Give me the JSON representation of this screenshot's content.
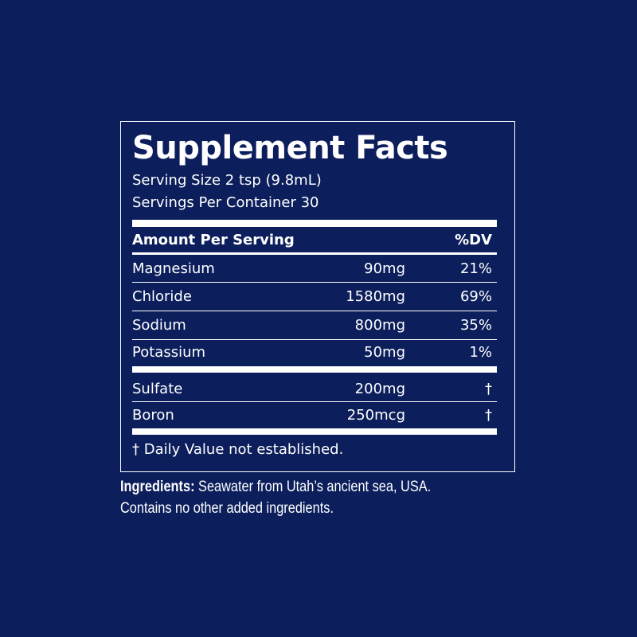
{
  "colors": {
    "background": "#0c1f5c",
    "text": "#ffffff"
  },
  "label": {
    "title": "Supplement Facts",
    "serving_size": "Serving Size 2 tsp (9.8mL)",
    "servings_per_container": "Servings Per Container 30",
    "header": {
      "amount": "Amount Per Serving",
      "dv": "%DV"
    },
    "rows": [
      {
        "name": "Magnesium",
        "amount": "90mg",
        "dv": "21%"
      },
      {
        "name": "Chloride",
        "amount": "1580mg",
        "dv": "69%"
      },
      {
        "name": "Sodium",
        "amount": "800mg",
        "dv": "35%"
      },
      {
        "name": "Potassium",
        "amount": "50mg",
        "dv": "1%"
      },
      {
        "name": "Sulfate",
        "amount": "200mg",
        "dv": "†"
      },
      {
        "name": "Boron",
        "amount": "250mcg",
        "dv": "†"
      }
    ],
    "footnote": "† Daily Value not established."
  },
  "ingredients": {
    "label": "Ingredients:",
    "text": " Seawater from Utah’s ancient sea, USA.",
    "line2": "Contains no other added ingredients."
  }
}
